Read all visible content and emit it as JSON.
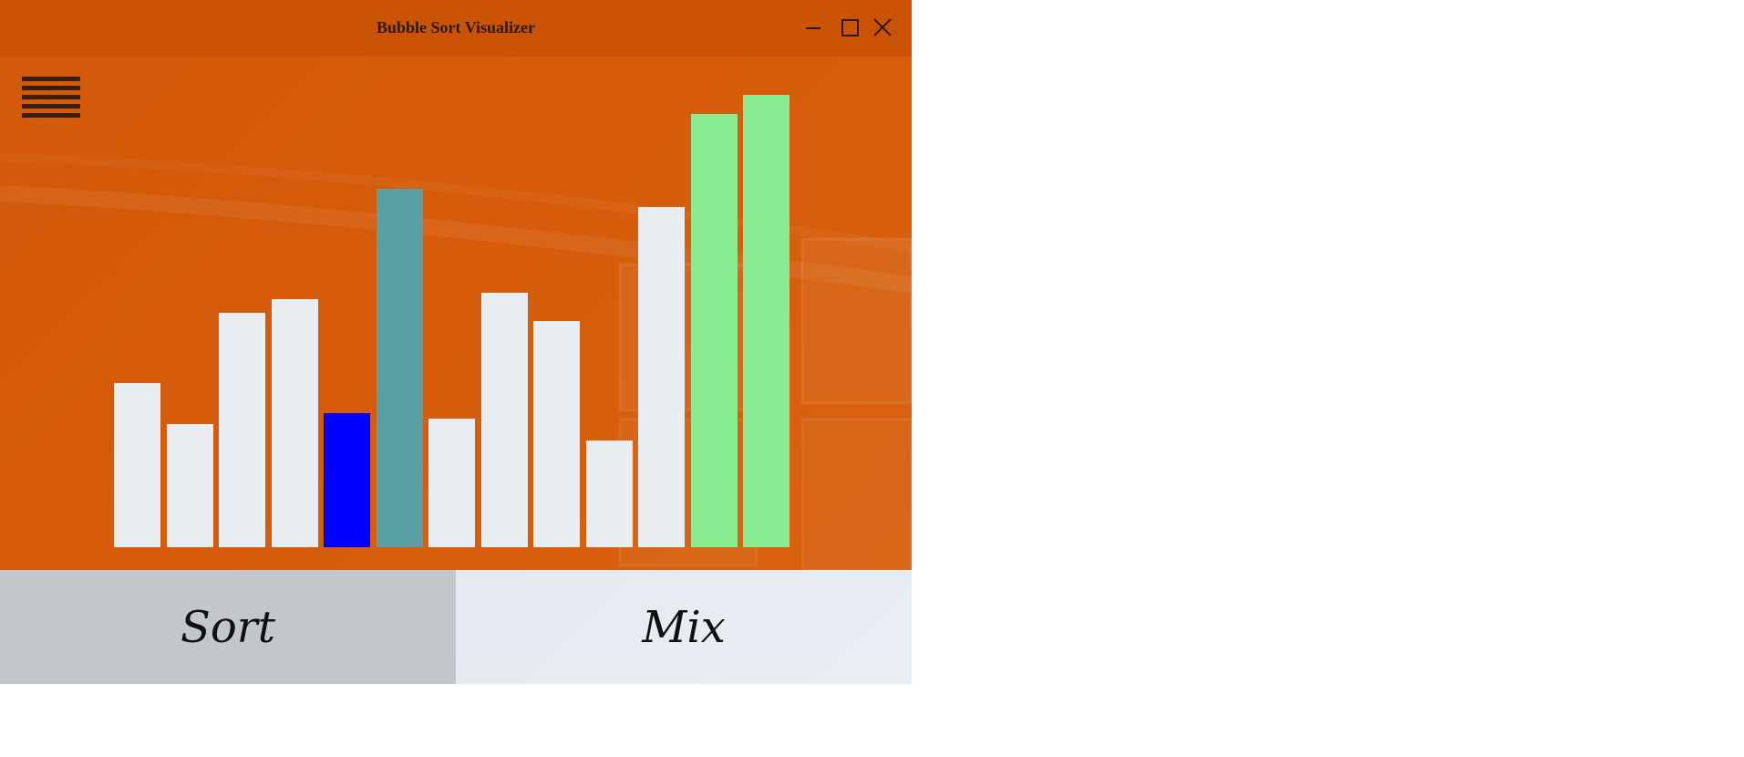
{
  "window": {
    "title": "Bubble Sort Visualizer",
    "controls": [
      "minimize-icon",
      "maximize-icon",
      "close-icon"
    ]
  },
  "menu": {
    "icon": "hamburger-menu-icon"
  },
  "chart_data": {
    "type": "bar",
    "values": [
      18,
      13.5,
      25.7,
      27.2,
      14.7,
      39.3,
      14.1,
      27.9,
      24.8,
      11.7,
      37.3,
      47.5,
      49.6
    ],
    "states": [
      "default",
      "default",
      "default",
      "default",
      "active",
      "comparing",
      "default",
      "default",
      "default",
      "default",
      "default",
      "sorted",
      "sorted"
    ],
    "colors": {
      "default": "#e8edf2",
      "active": "#0000ff",
      "comparing": "#5a9fa6",
      "sorted": "#8aec90"
    }
  },
  "buttons": {
    "sort_label": "Sort",
    "mix_label": "Mix"
  }
}
